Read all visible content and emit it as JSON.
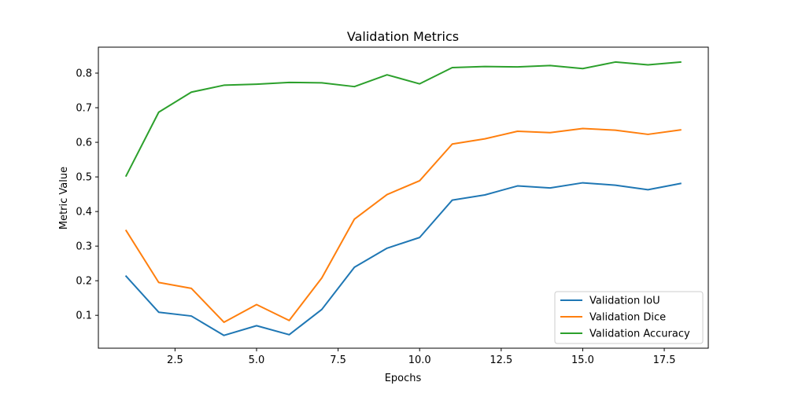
{
  "chart_data": {
    "type": "line",
    "title": "Validation Metrics",
    "xlabel": "Epochs",
    "ylabel": "Metric Value",
    "xlim": [
      0.15,
      18.85
    ],
    "ylim": [
      0.005,
      0.875
    ],
    "xticks": [
      {
        "value": 2.5,
        "label": "2.5"
      },
      {
        "value": 5.0,
        "label": "5.0"
      },
      {
        "value": 7.5,
        "label": "7.5"
      },
      {
        "value": 10.0,
        "label": "10.0"
      },
      {
        "value": 12.5,
        "label": "12.5"
      },
      {
        "value": 15.0,
        "label": "15.0"
      },
      {
        "value": 17.5,
        "label": "17.5"
      }
    ],
    "yticks": [
      {
        "value": 0.1,
        "label": "0.1"
      },
      {
        "value": 0.2,
        "label": "0.2"
      },
      {
        "value": 0.3,
        "label": "0.3"
      },
      {
        "value": 0.4,
        "label": "0.4"
      },
      {
        "value": 0.5,
        "label": "0.5"
      },
      {
        "value": 0.6,
        "label": "0.6"
      },
      {
        "value": 0.7,
        "label": "0.7"
      },
      {
        "value": 0.8,
        "label": "0.8"
      }
    ],
    "grid": false,
    "legend_position": "lower-right",
    "x": [
      1,
      2,
      3,
      4,
      5,
      6,
      7,
      8,
      9,
      10,
      11,
      12,
      13,
      14,
      15,
      16,
      17,
      18
    ],
    "series": [
      {
        "name": "Validation IoU",
        "color": "#1f77b4",
        "values": [
          0.213,
          0.109,
          0.098,
          0.042,
          0.07,
          0.044,
          0.117,
          0.239,
          0.294,
          0.325,
          0.433,
          0.448,
          0.474,
          0.468,
          0.483,
          0.476,
          0.463,
          0.481
        ]
      },
      {
        "name": "Validation Dice",
        "color": "#ff7f0e",
        "values": [
          0.345,
          0.195,
          0.178,
          0.08,
          0.131,
          0.085,
          0.208,
          0.378,
          0.449,
          0.489,
          0.595,
          0.61,
          0.632,
          0.628,
          0.64,
          0.635,
          0.623,
          0.636
        ]
      },
      {
        "name": "Validation Accuracy",
        "color": "#2ca02c",
        "values": [
          0.503,
          0.687,
          0.745,
          0.765,
          0.768,
          0.773,
          0.772,
          0.761,
          0.795,
          0.769,
          0.816,
          0.819,
          0.818,
          0.822,
          0.813,
          0.832,
          0.824,
          0.832
        ]
      }
    ]
  }
}
